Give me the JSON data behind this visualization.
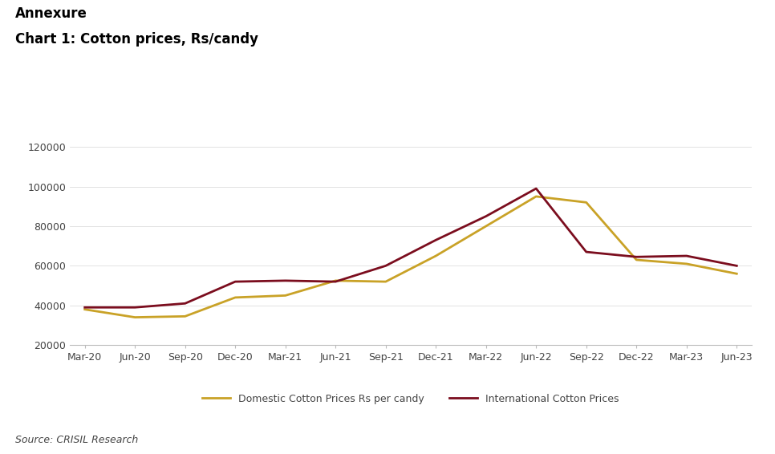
{
  "title_line1": "Annexure",
  "title_line2": "Chart 1: Cotton prices, Rs/candy",
  "source": "Source: CRISIL Research",
  "x_labels": [
    "Mar-20",
    "Jun-20",
    "Sep-20",
    "Dec-20",
    "Mar-21",
    "Jun-21",
    "Sep-21",
    "Dec-21",
    "Mar-22",
    "Jun-22",
    "Sep-22",
    "Dec-22",
    "Mar-23",
    "Jun-23"
  ],
  "domestic": [
    38000,
    34000,
    34500,
    44000,
    45000,
    52500,
    52000,
    65000,
    80000,
    95000,
    92000,
    63000,
    61000,
    56000
  ],
  "international": [
    39000,
    39000,
    41000,
    52000,
    52500,
    52000,
    60000,
    73000,
    85000,
    99000,
    67000,
    64500,
    65000,
    60000
  ],
  "domestic_color": "#C9A227",
  "international_color": "#7B0D1E",
  "ylim": [
    20000,
    130000
  ],
  "yticks": [
    20000,
    40000,
    60000,
    80000,
    100000,
    120000
  ],
  "line_width": 2.0,
  "legend_domestic": "Domestic Cotton Prices Rs per candy",
  "legend_international": "International Cotton Prices",
  "background_color": "#ffffff",
  "title1_fontsize": 12,
  "title2_fontsize": 12,
  "axis_fontsize": 9,
  "legend_fontsize": 9,
  "source_fontsize": 9
}
